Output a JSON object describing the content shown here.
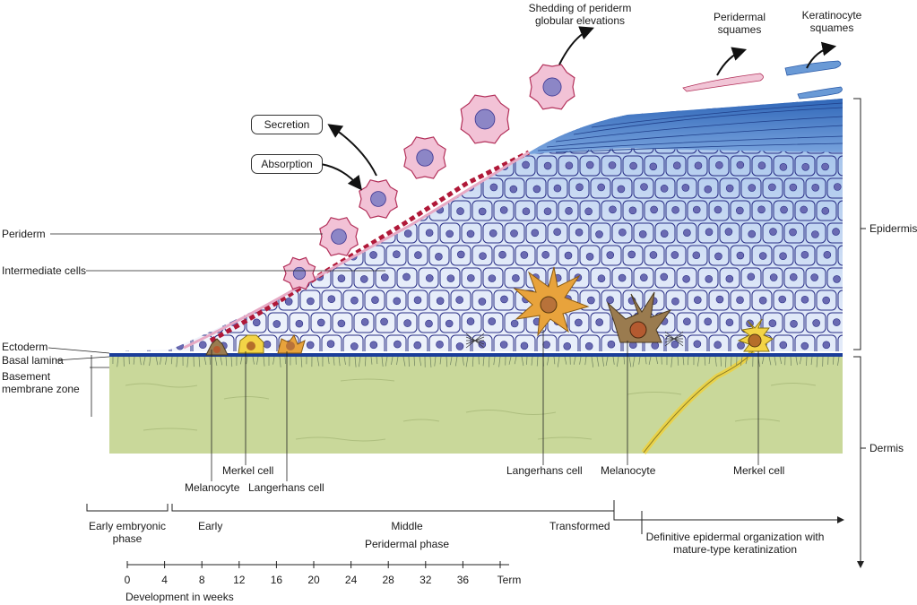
{
  "labels": {
    "shedding": "Shedding of periderm globular elevations",
    "shedding_line1": "Shedding of periderm",
    "shedding_line2": "globular elevations",
    "peridermal_squames_1": "Peridermal",
    "peridermal_squames_2": "squames",
    "keratinocyte_squames_1": "Keratinocyte",
    "keratinocyte_squames_2": "squames",
    "secretion": "Secretion",
    "absorption": "Absorption",
    "periderm": "Periderm",
    "intermediate_cells": "Intermediate cells",
    "ectoderm": "Ectoderm",
    "basal_lamina": "Basal lamina",
    "basement_1": "Basement",
    "basement_2": "membrane zone",
    "epidermis": "Epidermis",
    "dermis": "Dermis",
    "merkel_cell_left": "Merkel cell",
    "melanocyte_left": "Melanocyte",
    "langerhans_left": "Langerhans cell",
    "langerhans_right": "Langerhans cell",
    "melanocyte_right": "Melanocyte",
    "merkel_cell_right": "Merkel cell"
  },
  "phases": {
    "early_embryonic_1": "Early embryonic",
    "early_embryonic_2": "phase",
    "early": "Early",
    "middle": "Middle",
    "peridermal_phase": "Peridermal phase",
    "transformed": "Transformed",
    "definitive_1": "Definitive epidermal organization with",
    "definitive_2": "mature-type keratinization"
  },
  "timeline": {
    "ticks": [
      "0",
      "4",
      "8",
      "12",
      "16",
      "20",
      "24",
      "28",
      "32",
      "36",
      "Term"
    ],
    "axis_label": "Development in weeks"
  },
  "colors": {
    "dermis": "#c9d89a",
    "epidermis_light": "#e9eef9",
    "epidermis_dark": "#a9c6ec",
    "cell_border": "#2a2f86",
    "nucleus": "#6a6ab2",
    "periderm": "#f2c2d6",
    "periderm_edge": "#b3305a",
    "junction": "#b01838",
    "stratum": "#3f78c6",
    "langerhans": "#e8a33c",
    "melanocyte": "#9a7b4f",
    "merkel": "#f3d446"
  }
}
